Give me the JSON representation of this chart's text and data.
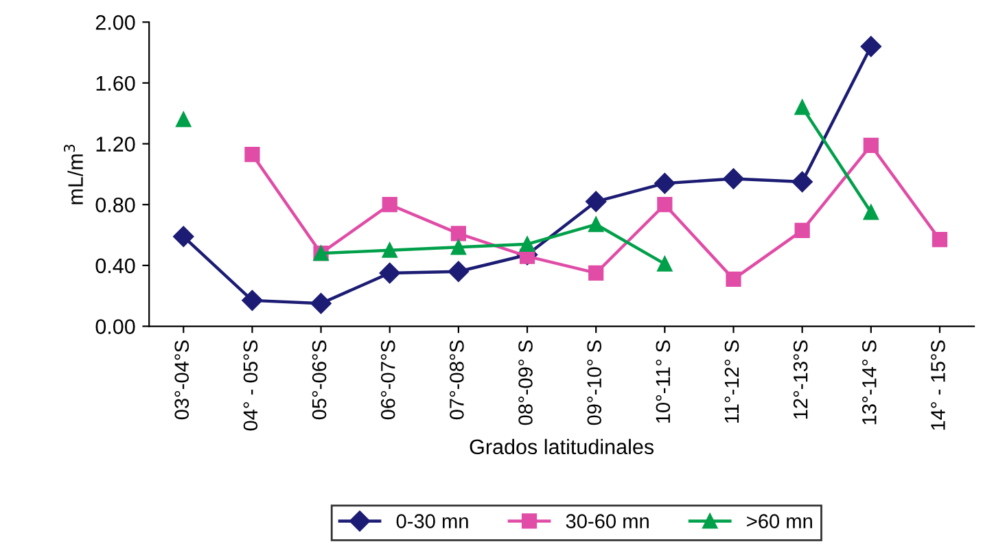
{
  "chart_data": {
    "type": "line",
    "xlabel": "Grados latitudinales",
    "ylabel": "mL/m$^{3}$",
    "categories": [
      "03°-04°S",
      "04° - 05°S",
      "05°-06°S",
      "06°-07°S",
      "07°-08°S",
      "08°-09° S",
      "09°-10° S",
      "10°-11° S",
      "11°-12° S",
      "12°-13°S",
      "13°-14° S",
      "14° - 15°S"
    ],
    "series": [
      {
        "name": "0-30 mn",
        "color": "#1c1c74",
        "marker": "diamond",
        "values": [
          0.59,
          0.17,
          0.15,
          0.35,
          0.36,
          0.47,
          0.82,
          0.94,
          0.97,
          0.95,
          1.84,
          null
        ]
      },
      {
        "name": "30-60 mn",
        "color": "#e04ca6",
        "marker": "square",
        "values": [
          null,
          1.13,
          0.48,
          0.8,
          0.61,
          0.46,
          0.35,
          0.8,
          0.31,
          0.63,
          1.19,
          0.57
        ]
      },
      {
        "name": ">60 mn",
        "color": "#00a04a",
        "marker": "triangle",
        "values": [
          1.36,
          null,
          0.48,
          0.5,
          0.52,
          0.54,
          0.67,
          0.41,
          null,
          1.44,
          0.75,
          null
        ]
      }
    ],
    "ylim": [
      0,
      2
    ],
    "yticks": [
      {
        "value": 0,
        "label": "0.00"
      },
      {
        "value": 0.4,
        "label": "0.40"
      },
      {
        "value": 0.8,
        "label": "0.80"
      },
      {
        "value": 1.2,
        "label": "1.20"
      },
      {
        "value": 1.6,
        "label": "1.60"
      },
      {
        "value": 2,
        "label": "2.00"
      }
    ],
    "grid": false,
    "legend": "bottom",
    "line_style": "solid"
  }
}
